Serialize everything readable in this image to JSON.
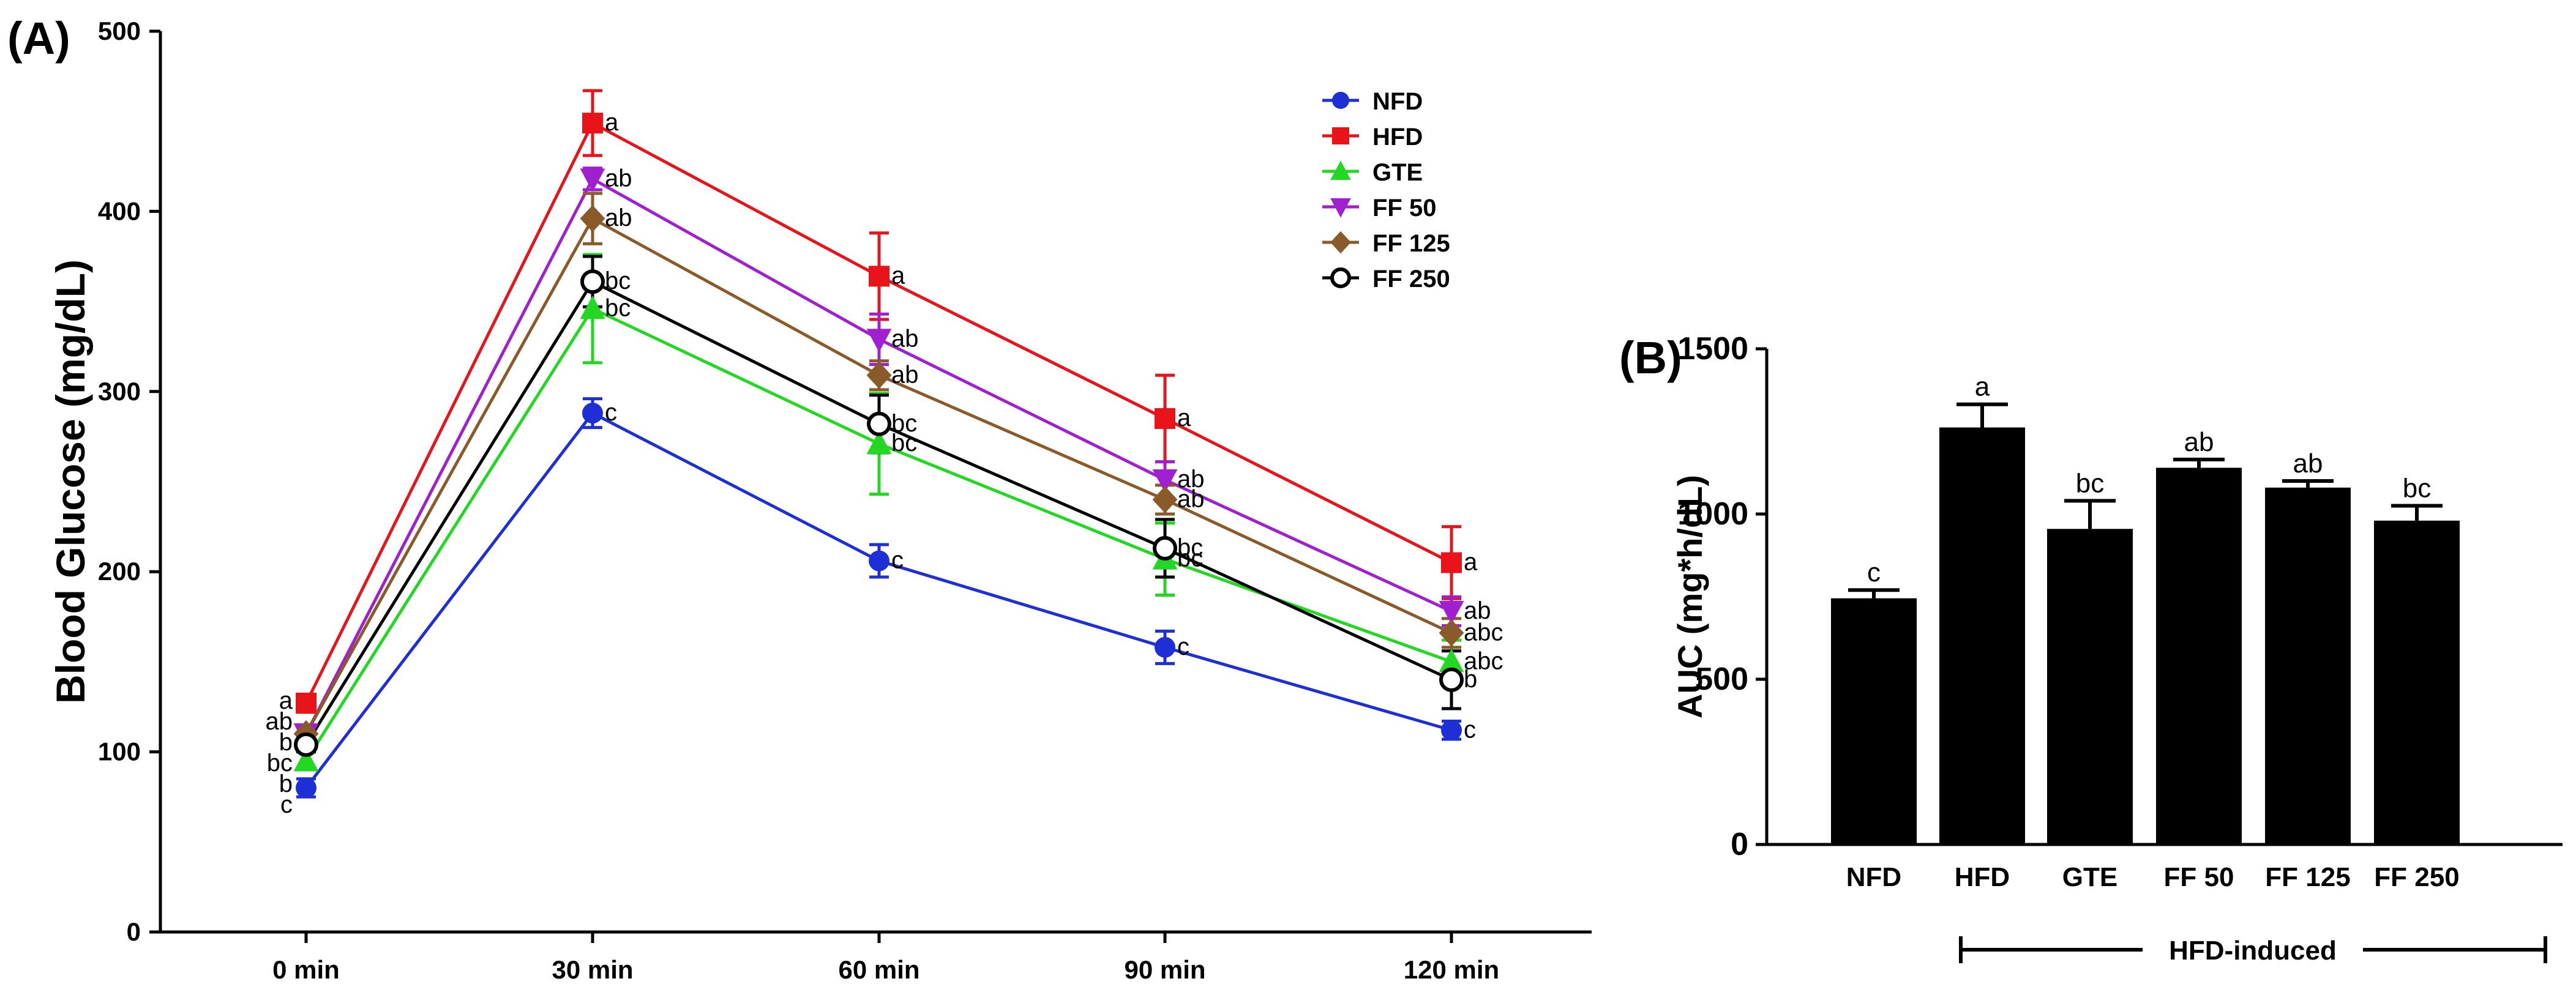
{
  "panel_a_tag": "(A)",
  "panel_b_tag": "(B)",
  "chart_data": [
    {
      "type": "line",
      "title": "",
      "xlabel": "",
      "ylabel": "Blood Glucose (mg/dL)",
      "categories": [
        "0 min",
        "30 min",
        "60 min",
        "90 min",
        "120 min"
      ],
      "ylim": [
        0,
        500
      ],
      "yticks": [
        0,
        100,
        200,
        300,
        400,
        500
      ],
      "legend_position": "top-right",
      "series": [
        {
          "name": "NFD",
          "color": "#1f2fd6",
          "marker": "circle",
          "values": [
            80,
            288,
            206,
            158,
            112
          ],
          "errors": [
            5,
            8,
            9,
            9,
            5
          ],
          "letters": [
            "c",
            "c",
            "c",
            "c",
            "c"
          ]
        },
        {
          "name": "HFD",
          "color": "#e8141a",
          "marker": "square",
          "values": [
            127,
            449,
            364,
            285,
            205
          ],
          "errors": [
            5,
            18,
            24,
            24,
            20
          ],
          "letters": [
            "a",
            "a",
            "a",
            "a",
            "a"
          ]
        },
        {
          "name": "GTE",
          "color": "#22d822",
          "marker": "triangle-up",
          "values": [
            95,
            346,
            271,
            207,
            150
          ],
          "errors": [
            5,
            30,
            28,
            20,
            12
          ],
          "letters": [
            "b",
            "bc",
            "bc",
            "bc",
            "abc"
          ]
        },
        {
          "name": "FF 50",
          "color": "#a020d0",
          "marker": "triangle-down",
          "values": [
            110,
            418,
            329,
            251,
            178
          ],
          "errors": [
            5,
            6,
            14,
            10,
            8
          ],
          "letters": [
            "ab",
            "ab",
            "ab",
            "ab",
            "ab"
          ]
        },
        {
          "name": "FF 125",
          "color": "#8b5a2b",
          "marker": "diamond",
          "values": [
            110,
            396,
            309,
            240,
            166
          ],
          "errors": [
            5,
            14,
            8,
            8,
            8
          ],
          "letters": [
            "b",
            "ab",
            "ab",
            "ab",
            "abc"
          ]
        },
        {
          "name": "FF 250",
          "color": "#000000",
          "marker": "open-circle",
          "values": [
            104,
            361,
            282,
            213,
            140
          ],
          "errors": [
            4,
            14,
            16,
            16,
            16
          ],
          "letters": [
            "bc",
            "bc",
            "bc",
            "bc",
            "b"
          ]
        }
      ]
    },
    {
      "type": "bar",
      "title": "",
      "xlabel": "",
      "ylabel": "AUC (mg*h/dL)",
      "categories": [
        "NFD",
        "HFD",
        "GTE",
        "FF 50",
        "FF 125",
        "FF 250"
      ],
      "values": [
        745,
        1262,
        955,
        1140,
        1080,
        980
      ],
      "errors": [
        25,
        70,
        85,
        25,
        20,
        45
      ],
      "letters": [
        "c",
        "a",
        "bc",
        "ab",
        "ab",
        "bc"
      ],
      "ylim": [
        0,
        1500
      ],
      "yticks": [
        0,
        500,
        1000,
        1500
      ],
      "bar_color": "#000000",
      "group_label": "HFD-induced"
    }
  ]
}
